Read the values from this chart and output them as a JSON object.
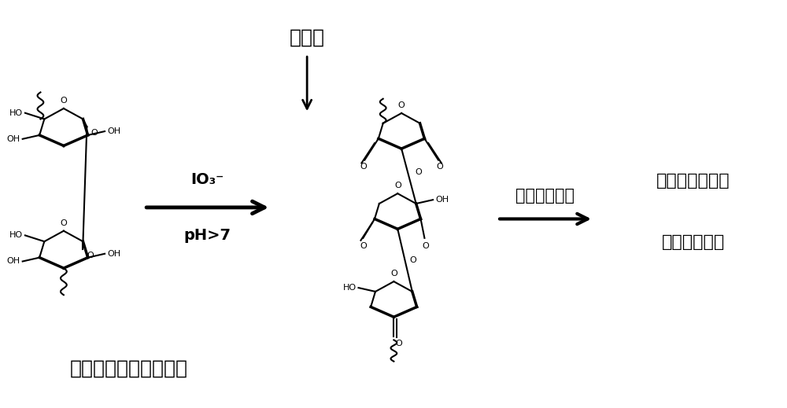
{
  "bg_color": "#ffffff",
  "title_bottom": "纤维素非晶体区的反应",
  "label_top": "被溶解",
  "label_reagent1": "IO₃⁻",
  "label_reagent2": "pH>7",
  "label_middle_arrow": "剩下的晶体区",
  "label_right1": "纤维素纳米纤维",
  "label_right2": "纤维素纳米晶",
  "figsize": [
    10.0,
    5.19
  ],
  "dpi": 100
}
